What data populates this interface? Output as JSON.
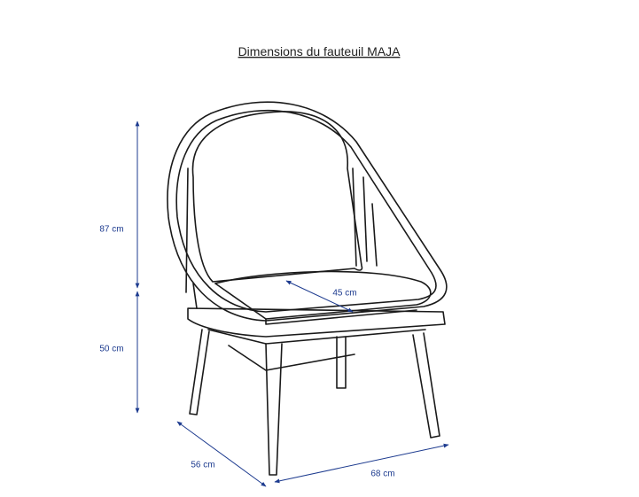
{
  "title": "Dimensions du fauteuil MAJA",
  "dimensions": {
    "total_height": "87 cm",
    "seat_height": "50 cm",
    "seat_depth": "45 cm",
    "depth": "56 cm",
    "width": "68 cm"
  }
}
